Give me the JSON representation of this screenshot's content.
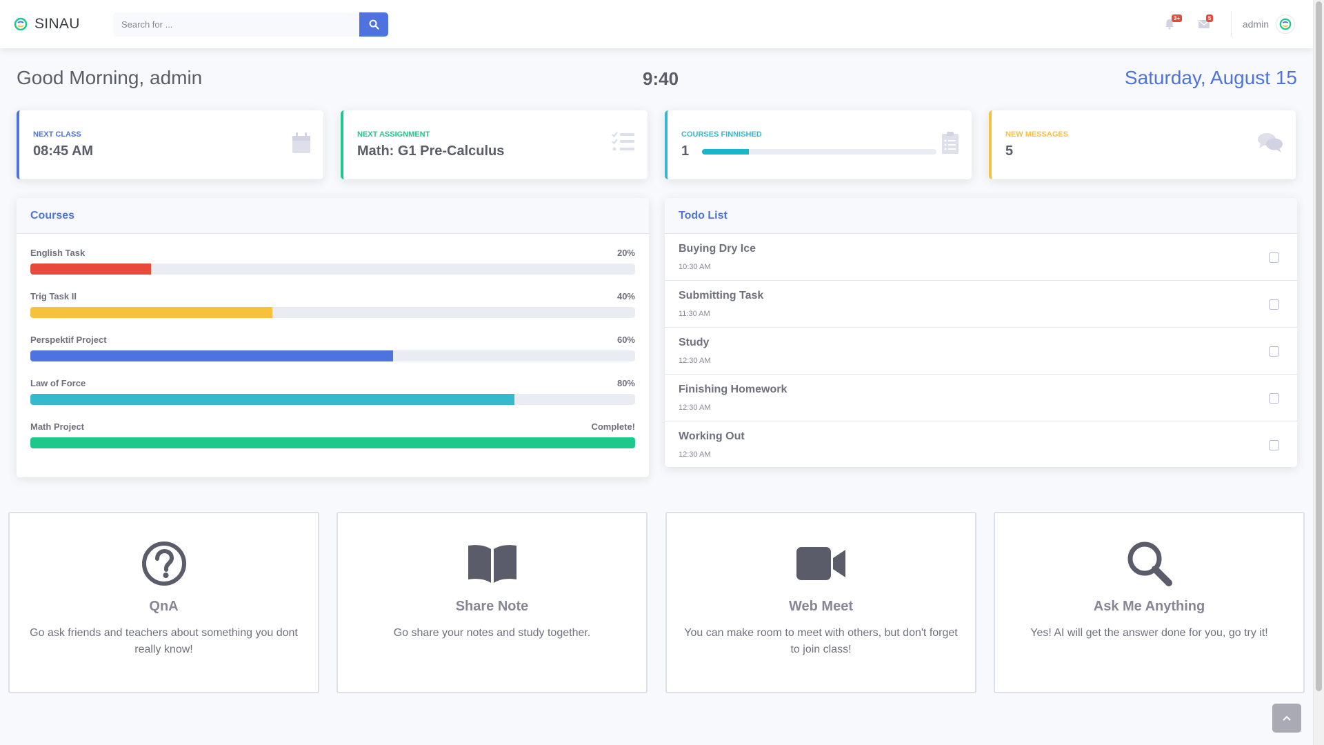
{
  "brand": {
    "name": "SINAU"
  },
  "search": {
    "placeholder": "Search for ..."
  },
  "topbar": {
    "alerts_badge": "3+",
    "messages_badge": "5",
    "user_name": "admin"
  },
  "greeting": {
    "text": "Good Morning, admin",
    "time": "9:40",
    "date": "Saturday, August 15"
  },
  "stats": [
    {
      "label": "Next Class",
      "value": "08:45 AM",
      "color": "#4e73df",
      "icon": "calendar-icon"
    },
    {
      "label": "Next Assignment",
      "value": "Math: G1 Pre-Calculus",
      "color": "#1cc88a",
      "icon": "tasks-icon"
    },
    {
      "label": "Courses Finnished",
      "value": "1",
      "color": "#36b9cc",
      "icon": "clipboard-icon",
      "progress": 0.2
    },
    {
      "label": "New Messages",
      "value": "5",
      "color": "#f6c23e",
      "icon": "comments-icon"
    }
  ],
  "courses": {
    "title": "Courses",
    "items": [
      {
        "name": "English Task",
        "percent_label": "20%",
        "progress": 0.2,
        "color": "#e74a3b"
      },
      {
        "name": "Trig Task II",
        "percent_label": "40%",
        "progress": 0.4,
        "color": "#f6c23e"
      },
      {
        "name": "Perspektif Project",
        "percent_label": "60%",
        "progress": 0.6,
        "color": "#4e73df"
      },
      {
        "name": "Law of Force",
        "percent_label": "80%",
        "progress": 0.8,
        "color": "#36b9cc"
      },
      {
        "name": "Math Project",
        "percent_label": "Complete!",
        "progress": 1.0,
        "color": "#1cc88a"
      }
    ]
  },
  "todo": {
    "title": "Todo List",
    "items": [
      {
        "title": "Buying Dry Ice",
        "time": "10:30 AM"
      },
      {
        "title": "Submitting Task",
        "time": "11:30 AM"
      },
      {
        "title": "Study",
        "time": "12:30 AM"
      },
      {
        "title": "Finishing Homework",
        "time": "12:30 AM"
      },
      {
        "title": "Working Out",
        "time": "12:30 AM"
      }
    ]
  },
  "features": [
    {
      "title": "QnA",
      "desc": "Go ask friends and teachers about something you dont really know!",
      "icon": "question-circle-icon"
    },
    {
      "title": "Share Note",
      "desc": "Go share your notes and study together.",
      "icon": "book-open-icon"
    },
    {
      "title": "Web Meet",
      "desc": "You can make room to meet with others, but don't forget to join class!",
      "icon": "video-camera-icon"
    },
    {
      "title": "Ask Me Anything",
      "desc": "Yes! AI will get the answer done for you, go try it!",
      "icon": "search-icon"
    }
  ]
}
